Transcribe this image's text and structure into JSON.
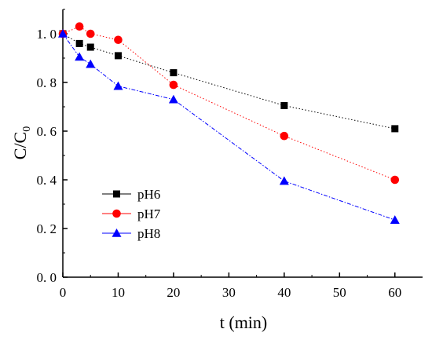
{
  "chart_data": {
    "type": "line",
    "title": "",
    "xlabel": "t  (min)",
    "ylabel": "C/C",
    "ylabel_subscript": "0",
    "xlim": [
      0,
      65
    ],
    "ylim": [
      0.0,
      1.1
    ],
    "xticks": [
      0,
      10,
      20,
      30,
      40,
      50,
      60
    ],
    "xtick_labels": [
      "0",
      "10",
      "20",
      "30",
      "40",
      "50",
      "60"
    ],
    "yticks": [
      0.0,
      0.2,
      0.4,
      0.6,
      0.8,
      1.0
    ],
    "ytick_labels": [
      "0. 0",
      "0. 2",
      "0. 4",
      "0. 6",
      "0. 8",
      "1. 0"
    ],
    "grid": false,
    "legend_position": "lower-left",
    "series": [
      {
        "name": "pH6",
        "color": "#000000",
        "marker": "square",
        "line_style": "dotted",
        "x": [
          0,
          3,
          5,
          10,
          20,
          40,
          60
        ],
        "y": [
          1.0,
          0.96,
          0.945,
          0.91,
          0.84,
          0.705,
          0.61
        ]
      },
      {
        "name": "pH7",
        "color": "#ff0000",
        "marker": "circle",
        "line_style": "dotted",
        "x": [
          0,
          3,
          5,
          10,
          20,
          40,
          60
        ],
        "y": [
          1.0,
          1.03,
          1.0,
          0.975,
          0.79,
          0.58,
          0.4
        ]
      },
      {
        "name": "pH8",
        "color": "#0000ff",
        "marker": "triangle",
        "line_style": "dashdot",
        "x": [
          0,
          3,
          5,
          10,
          20,
          40,
          60
        ],
        "y": [
          1.0,
          0.905,
          0.875,
          0.785,
          0.73,
          0.395,
          0.235
        ]
      }
    ]
  }
}
